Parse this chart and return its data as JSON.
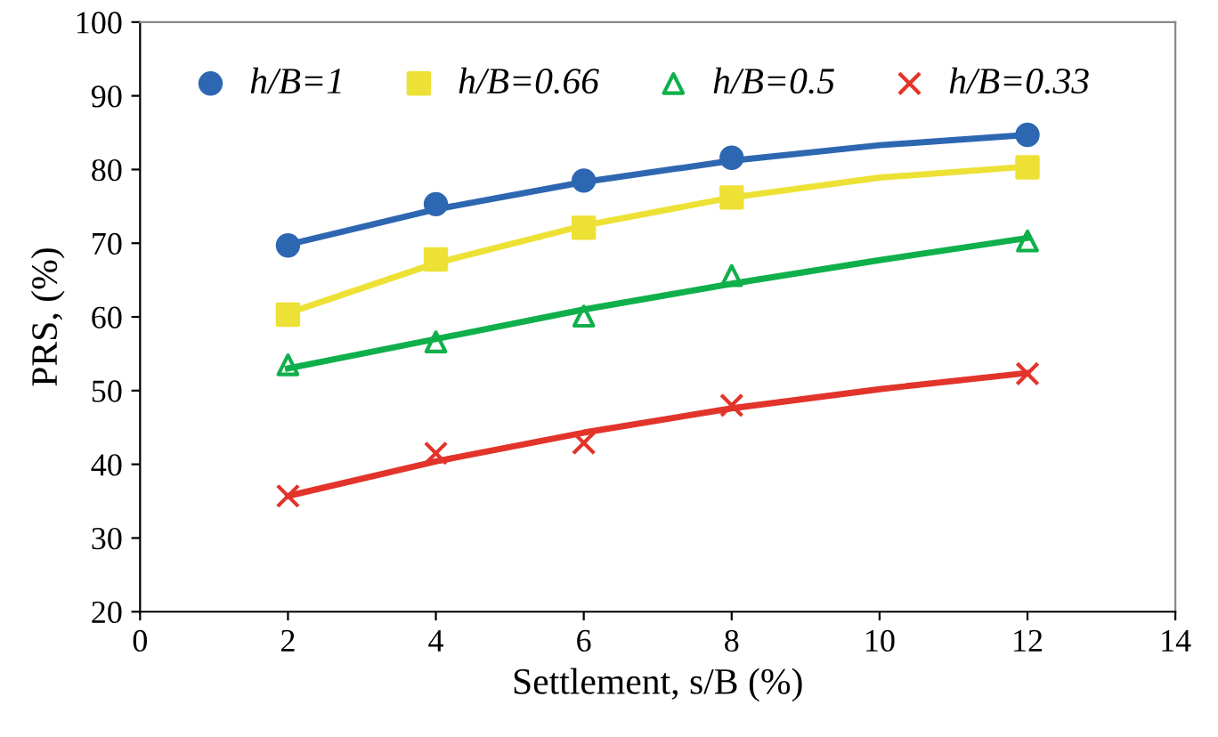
{
  "chart_data": {
    "type": "scatter",
    "xlabel": "Settlement, s/B (%)",
    "ylabel": "PRS, (%)",
    "xlim": [
      0,
      14
    ],
    "xticks": [
      0,
      2,
      4,
      6,
      8,
      10,
      12,
      14
    ],
    "ylim": [
      20,
      100
    ],
    "yticks": [
      20,
      30,
      40,
      50,
      60,
      70,
      80,
      90,
      100
    ],
    "grid": false,
    "legend": "top left",
    "series": [
      {
        "name": "h/B=1",
        "marker": "circle",
        "color": "#2e67b1",
        "x": [
          2,
          4,
          6,
          8,
          12
        ],
        "values": [
          69.7,
          75.3,
          78.5,
          81.6,
          84.7
        ]
      },
      {
        "name": "h/B=0.66",
        "marker": "square",
        "color": "#ede135",
        "x": [
          2,
          4,
          6,
          8,
          12
        ],
        "values": [
          60.3,
          67.8,
          72.1,
          76.2,
          80.3
        ]
      },
      {
        "name": "h/B=0.5",
        "marker": "triangle",
        "color": "#0fb04b",
        "x": [
          2,
          4,
          6,
          8,
          12
        ],
        "values": [
          53.5,
          56.6,
          60.1,
          65.6,
          70.3
        ]
      },
      {
        "name": "h/B=0.33",
        "marker": "cross",
        "color": "#e2342a",
        "x": [
          2,
          4,
          6,
          8,
          12
        ],
        "values": [
          35.7,
          41.5,
          42.9,
          48.0,
          52.3
        ]
      },
      {
        "type": "line",
        "marker": "none",
        "color": "#2e67b1",
        "x": [
          2,
          4,
          6,
          8,
          10,
          12
        ],
        "values": [
          69.8,
          74.6,
          78.3,
          81.2,
          83.3,
          84.7
        ]
      },
      {
        "type": "line",
        "marker": "none",
        "color": "#ede135",
        "x": [
          2,
          4,
          6,
          8,
          10,
          12
        ],
        "values": [
          60.5,
          67.3,
          72.4,
          76.2,
          78.9,
          80.4
        ]
      },
      {
        "type": "line",
        "marker": "none",
        "color": "#0fb04b",
        "x": [
          2,
          4,
          6,
          8,
          10,
          12
        ],
        "values": [
          53.0,
          57.0,
          61.0,
          64.5,
          67.7,
          70.7
        ]
      },
      {
        "type": "line",
        "marker": "none",
        "color": "#e2342a",
        "x": [
          2,
          4,
          6,
          8,
          10,
          12
        ],
        "values": [
          35.7,
          40.4,
          44.3,
          47.6,
          50.2,
          52.4
        ]
      }
    ]
  }
}
